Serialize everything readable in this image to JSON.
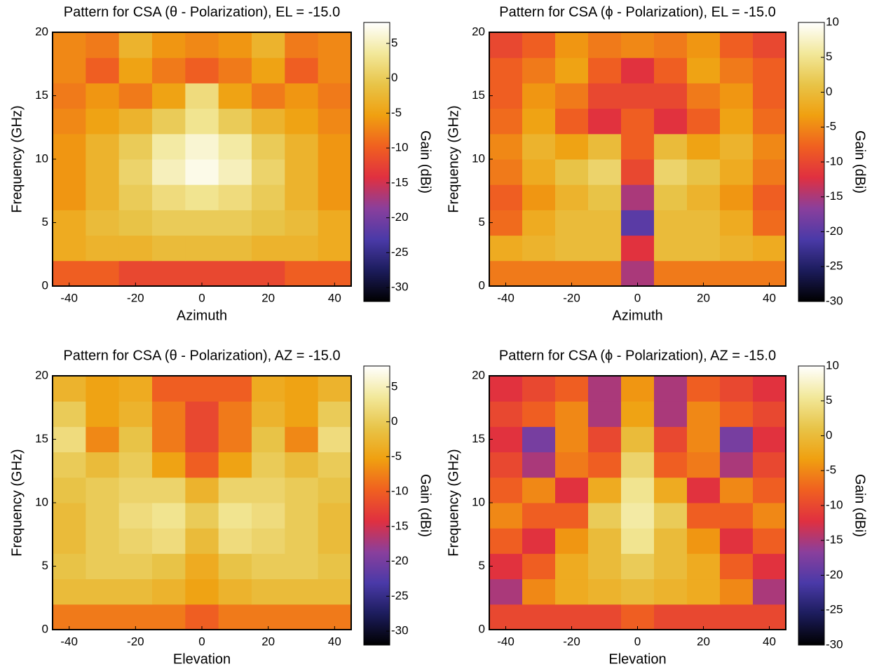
{
  "chart_data": [
    {
      "type": "heatmap",
      "title": "Pattern for CSA (θ - Polarization), EL = -15.0",
      "xlabel": "Azimuth",
      "ylabel": "Frequency (GHz)",
      "x": [
        -40,
        -30,
        -20,
        -10,
        0,
        10,
        20,
        30,
        40
      ],
      "y": [
        1,
        3,
        5,
        7,
        9,
        11,
        13,
        15,
        17,
        19
      ],
      "z": [
        [
          -10,
          -10,
          -12,
          -12,
          -12,
          -12,
          -12,
          -10,
          -10
        ],
        [
          -4,
          -3,
          -3,
          -2,
          -2,
          -2,
          -3,
          -3,
          -4
        ],
        [
          -4,
          -2,
          -1,
          0,
          0,
          0,
          -1,
          -2,
          -4
        ],
        [
          -6,
          -3,
          0,
          2,
          3,
          2,
          0,
          -3,
          -6
        ],
        [
          -6,
          -3,
          1,
          5,
          7,
          5,
          1,
          -3,
          -6
        ],
        [
          -6,
          -3,
          0,
          4,
          6,
          4,
          0,
          -3,
          -6
        ],
        [
          -7,
          -5,
          -3,
          0,
          3,
          0,
          -3,
          -5,
          -7
        ],
        [
          -8,
          -6,
          -8,
          -5,
          2,
          -5,
          -8,
          -6,
          -8
        ],
        [
          -7,
          -10,
          -5,
          -8,
          -10,
          -8,
          -5,
          -10,
          -7
        ],
        [
          -7,
          -8,
          -3,
          -6,
          -7,
          -6,
          -3,
          -8,
          -7
        ]
      ],
      "xlim": [
        -45,
        45
      ],
      "ylim": [
        0,
        20
      ],
      "xticks": [
        -40,
        -20,
        0,
        20,
        40
      ],
      "yticks": [
        0,
        5,
        10,
        15,
        20
      ],
      "colorbar": {
        "label": "Gain (dBi)",
        "lim": [
          -32,
          8
        ],
        "ticks": [
          -30,
          -25,
          -20,
          -15,
          -10,
          -5,
          0,
          5
        ]
      },
      "colormap": [
        "#000000",
        "#1c1c5c",
        "#4a3aa8",
        "#8a3f9c",
        "#e03040",
        "#f06020",
        "#f0a010",
        "#e8c448",
        "#f2e89a",
        "#ffffff"
      ]
    },
    {
      "type": "heatmap",
      "title": "Pattern for CSA (ϕ - Polarization), EL = -15.0",
      "xlabel": "Azimuth",
      "ylabel": "Frequency (GHz)",
      "x": [
        -40,
        -30,
        -20,
        -10,
        0,
        10,
        20,
        30,
        40
      ],
      "y": [
        1,
        3,
        5,
        7,
        9,
        11,
        13,
        15,
        17,
        19
      ],
      "z": [
        [
          -6,
          -6,
          -6,
          -6,
          -15,
          -6,
          -6,
          -6,
          -6
        ],
        [
          -2,
          -1,
          0,
          0,
          -12,
          0,
          0,
          -1,
          -2
        ],
        [
          -7,
          -2,
          0,
          0,
          -20,
          0,
          0,
          -2,
          -7
        ],
        [
          -8,
          -4,
          -1,
          1,
          -15,
          1,
          -1,
          -4,
          -8
        ],
        [
          -6,
          -2,
          1,
          3,
          -10,
          3,
          1,
          -2,
          -6
        ],
        [
          -5,
          -1,
          -3,
          0,
          -8,
          0,
          -3,
          -1,
          -5
        ],
        [
          -7,
          -3,
          -8,
          -12,
          -8,
          -12,
          -8,
          -3,
          -7
        ],
        [
          -8,
          -4,
          -6,
          -10,
          -10,
          -10,
          -6,
          -4,
          -8
        ],
        [
          -8,
          -6,
          -3,
          -8,
          -12,
          -8,
          -3,
          -6,
          -8
        ],
        [
          -10,
          -8,
          -4,
          -6,
          -5,
          -6,
          -4,
          -8,
          -10
        ]
      ],
      "xlim": [
        -45,
        45
      ],
      "ylim": [
        0,
        20
      ],
      "xticks": [
        -40,
        -20,
        0,
        20,
        40
      ],
      "yticks": [
        0,
        5,
        10,
        15,
        20
      ],
      "colorbar": {
        "label": "Gain (dBi)",
        "lim": [
          -30,
          10
        ],
        "ticks": [
          -30,
          -25,
          -20,
          -15,
          -10,
          -5,
          0,
          5,
          10
        ]
      },
      "colormap": [
        "#000000",
        "#1c1c5c",
        "#4a3aa8",
        "#8a3f9c",
        "#e03040",
        "#f06020",
        "#f0a010",
        "#e8c448",
        "#f2e89a",
        "#ffffff"
      ]
    },
    {
      "type": "heatmap",
      "title": "Pattern for CSA (θ - Polarization), AZ = -15.0",
      "xlabel": "Elevation",
      "ylabel": "Frequency (GHz)",
      "x": [
        -40,
        -30,
        -20,
        -10,
        0,
        10,
        20,
        30,
        40
      ],
      "y": [
        1,
        3,
        5,
        7,
        9,
        11,
        13,
        15,
        17,
        19
      ],
      "z": [
        [
          -8,
          -8,
          -8,
          -8,
          -10,
          -8,
          -8,
          -8,
          -8
        ],
        [
          -2,
          -2,
          -2,
          -3,
          -5,
          -3,
          -2,
          -2,
          -2
        ],
        [
          -1,
          0,
          0,
          -1,
          -4,
          -1,
          0,
          0,
          -1
        ],
        [
          -2,
          0,
          1,
          2,
          -2,
          2,
          1,
          0,
          -2
        ],
        [
          -2,
          0,
          2,
          3,
          0,
          3,
          2,
          0,
          -2
        ],
        [
          -1,
          0,
          1,
          1,
          -3,
          1,
          1,
          0,
          -1
        ],
        [
          0,
          -2,
          0,
          -5,
          -10,
          -5,
          0,
          -2,
          0
        ],
        [
          2,
          -7,
          -1,
          -8,
          -12,
          -8,
          -1,
          -7,
          2
        ],
        [
          0,
          -5,
          -3,
          -8,
          -12,
          -8,
          -3,
          -5,
          0
        ],
        [
          -3,
          -5,
          -4,
          -10,
          -10,
          -10,
          -4,
          -5,
          -3
        ]
      ],
      "xlim": [
        -45,
        45
      ],
      "ylim": [
        0,
        20
      ],
      "xticks": [
        -40,
        -20,
        0,
        20,
        40
      ],
      "yticks": [
        0,
        5,
        10,
        15,
        20
      ],
      "colorbar": {
        "label": "Gain (dBi)",
        "lim": [
          -32,
          8
        ],
        "ticks": [
          -30,
          -25,
          -20,
          -15,
          -10,
          -5,
          0,
          5
        ]
      },
      "colormap": [
        "#000000",
        "#1c1c5c",
        "#4a3aa8",
        "#8a3f9c",
        "#e03040",
        "#f06020",
        "#f0a010",
        "#e8c448",
        "#f2e89a",
        "#ffffff"
      ]
    },
    {
      "type": "heatmap",
      "title": "Pattern for CSA (ϕ - Polarization), AZ = -15.0",
      "xlabel": "Elevation",
      "ylabel": "Frequency (GHz)",
      "x": [
        -40,
        -30,
        -20,
        -10,
        0,
        10,
        20,
        30,
        40
      ],
      "y": [
        1,
        3,
        5,
        7,
        9,
        11,
        13,
        15,
        17,
        19
      ],
      "z": [
        [
          -10,
          -10,
          -10,
          -10,
          -8,
          -10,
          -10,
          -10,
          -10
        ],
        [
          -15,
          -5,
          -2,
          -1,
          0,
          -1,
          -2,
          -5,
          -15
        ],
        [
          -12,
          -8,
          -2,
          0,
          2,
          0,
          -2,
          -8,
          -12
        ],
        [
          -8,
          -12,
          -4,
          0,
          5,
          0,
          -4,
          -12,
          -8
        ],
        [
          -5,
          -8,
          -8,
          2,
          6,
          2,
          -8,
          -8,
          -5
        ],
        [
          -8,
          -5,
          -12,
          -2,
          5,
          -2,
          -12,
          -5,
          -8
        ],
        [
          -10,
          -15,
          -6,
          -8,
          3,
          -8,
          -6,
          -15,
          -10
        ],
        [
          -12,
          -18,
          -5,
          -10,
          0,
          -10,
          -5,
          -18,
          -12
        ],
        [
          -10,
          -8,
          -5,
          -15,
          -3,
          -15,
          -5,
          -8,
          -10
        ],
        [
          -12,
          -10,
          -8,
          -15,
          -4,
          -15,
          -8,
          -10,
          -12
        ]
      ],
      "xlim": [
        -45,
        45
      ],
      "ylim": [
        0,
        20
      ],
      "xticks": [
        -40,
        -20,
        0,
        20,
        40
      ],
      "yticks": [
        0,
        5,
        10,
        15,
        20
      ],
      "colorbar": {
        "label": "Gain (dBi)",
        "lim": [
          -30,
          10
        ],
        "ticks": [
          -30,
          -25,
          -20,
          -15,
          -10,
          -5,
          0,
          5,
          10
        ]
      },
      "colormap": [
        "#000000",
        "#1c1c5c",
        "#4a3aa8",
        "#8a3f9c",
        "#e03040",
        "#f06020",
        "#f0a010",
        "#e8c448",
        "#f2e89a",
        "#ffffff"
      ]
    }
  ]
}
